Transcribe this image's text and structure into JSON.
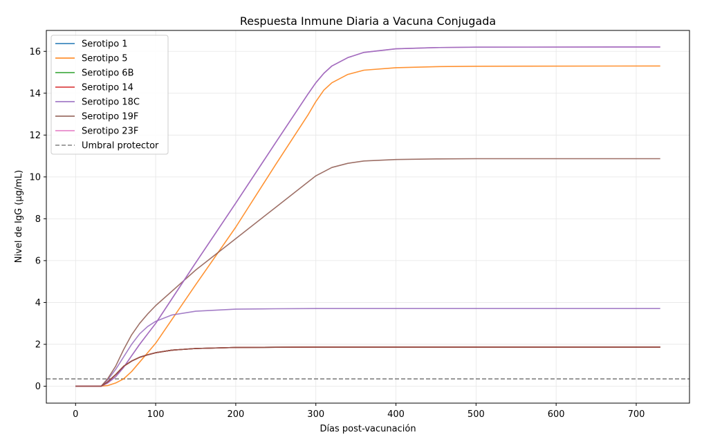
{
  "chart_data": {
    "type": "line",
    "title": "Respuesta Inmune Diaria a Vacuna Conjugada",
    "xlabel": "Días post-vacunación",
    "ylabel": "Nivel de IgG (μg/mL)",
    "xlim": [
      -36.5,
      766.5
    ],
    "ylim": [
      -0.81,
      17.0
    ],
    "xticks": [
      0,
      100,
      200,
      300,
      400,
      500,
      600,
      700
    ],
    "yticks": [
      0,
      2,
      4,
      6,
      8,
      10,
      12,
      14,
      16
    ],
    "grid": true,
    "legend_position": "top-left",
    "series": [
      {
        "name": "Serotipo 1",
        "color": "#1f77b4",
        "style": "solid",
        "points": [
          [
            0,
            0
          ],
          [
            32,
            0
          ],
          [
            40,
            0.2
          ],
          [
            50,
            0.55
          ],
          [
            60,
            0.95
          ],
          [
            70,
            1.2
          ],
          [
            80,
            1.38
          ],
          [
            90,
            1.5
          ],
          [
            100,
            1.6
          ],
          [
            120,
            1.72
          ],
          [
            150,
            1.8
          ],
          [
            200,
            1.85
          ],
          [
            250,
            1.86
          ],
          [
            300,
            1.87
          ],
          [
            400,
            1.87
          ],
          [
            730,
            1.87
          ]
        ]
      },
      {
        "name": "Serotipo 5",
        "color": "#ff7f0e",
        "style": "solid",
        "points": [
          [
            0,
            0
          ],
          [
            32,
            0
          ],
          [
            40,
            0.03
          ],
          [
            50,
            0.15
          ],
          [
            60,
            0.35
          ],
          [
            70,
            0.7
          ],
          [
            80,
            1.15
          ],
          [
            90,
            1.6
          ],
          [
            100,
            2.05
          ],
          [
            150,
            4.85
          ],
          [
            200,
            7.6
          ],
          [
            250,
            10.6
          ],
          [
            290,
            12.95
          ],
          [
            300,
            13.6
          ],
          [
            310,
            14.15
          ],
          [
            320,
            14.5
          ],
          [
            340,
            14.9
          ],
          [
            360,
            15.1
          ],
          [
            400,
            15.22
          ],
          [
            450,
            15.27
          ],
          [
            500,
            15.29
          ],
          [
            730,
            15.3
          ]
        ]
      },
      {
        "name": "Serotipo 6B",
        "color": "#2ca02c",
        "style": "solid",
        "points": [
          [
            0,
            0
          ],
          [
            32,
            0
          ],
          [
            40,
            0.2
          ],
          [
            50,
            0.55
          ],
          [
            60,
            0.95
          ],
          [
            70,
            1.2
          ],
          [
            80,
            1.38
          ],
          [
            90,
            1.5
          ],
          [
            100,
            1.6
          ],
          [
            120,
            1.72
          ],
          [
            150,
            1.8
          ],
          [
            200,
            1.85
          ],
          [
            250,
            1.86
          ],
          [
            300,
            1.87
          ],
          [
            400,
            1.87
          ],
          [
            730,
            1.87
          ]
        ]
      },
      {
        "name": "Serotipo 14",
        "color": "#d62728",
        "style": "solid",
        "points": [
          [
            0,
            0
          ],
          [
            32,
            0
          ],
          [
            40,
            0.2
          ],
          [
            50,
            0.55
          ],
          [
            60,
            0.95
          ],
          [
            70,
            1.2
          ],
          [
            80,
            1.38
          ],
          [
            90,
            1.5
          ],
          [
            100,
            1.6
          ],
          [
            120,
            1.72
          ],
          [
            150,
            1.8
          ],
          [
            200,
            1.85
          ],
          [
            250,
            1.86
          ],
          [
            300,
            1.87
          ],
          [
            400,
            1.87
          ],
          [
            730,
            1.87
          ]
        ]
      },
      {
        "name": "Serotipo 18C",
        "color": "#9467bd",
        "style": "solid",
        "points": [
          [
            0,
            0
          ],
          [
            32,
            0
          ],
          [
            40,
            0.3
          ],
          [
            50,
            0.8
          ],
          [
            60,
            1.4
          ],
          [
            70,
            2.0
          ],
          [
            80,
            2.5
          ],
          [
            90,
            2.85
          ],
          [
            100,
            3.1
          ],
          [
            120,
            3.4
          ],
          [
            150,
            3.58
          ],
          [
            200,
            3.68
          ],
          [
            250,
            3.7
          ],
          [
            300,
            3.71
          ],
          [
            730,
            3.71
          ]
        ]
      },
      {
        "name": "Serotipo 19F",
        "color": "#8c564b",
        "style": "solid",
        "points": [
          [
            0,
            0
          ],
          [
            32,
            0
          ],
          [
            40,
            0.35
          ],
          [
            50,
            0.95
          ],
          [
            60,
            1.75
          ],
          [
            70,
            2.45
          ],
          [
            80,
            3.0
          ],
          [
            90,
            3.45
          ],
          [
            100,
            3.85
          ],
          [
            150,
            5.55
          ],
          [
            200,
            7.05
          ],
          [
            250,
            8.55
          ],
          [
            290,
            9.75
          ],
          [
            300,
            10.05
          ],
          [
            320,
            10.45
          ],
          [
            340,
            10.65
          ],
          [
            360,
            10.76
          ],
          [
            400,
            10.83
          ],
          [
            450,
            10.86
          ],
          [
            500,
            10.87
          ],
          [
            730,
            10.87
          ]
        ]
      },
      {
        "name": "Serotipo 23F",
        "color": "#e377c2",
        "style": "solid",
        "points": [
          [
            0,
            0
          ],
          [
            32,
            0
          ],
          [
            40,
            0.15
          ],
          [
            50,
            0.45
          ],
          [
            60,
            0.9
          ],
          [
            70,
            1.45
          ],
          [
            80,
            2.0
          ],
          [
            90,
            2.5
          ],
          [
            100,
            3.0
          ],
          [
            150,
            5.9
          ],
          [
            200,
            8.75
          ],
          [
            250,
            11.65
          ],
          [
            290,
            13.95
          ],
          [
            300,
            14.5
          ],
          [
            310,
            14.95
          ],
          [
            320,
            15.3
          ],
          [
            340,
            15.7
          ],
          [
            360,
            15.95
          ],
          [
            400,
            16.12
          ],
          [
            450,
            16.18
          ],
          [
            500,
            16.2
          ],
          [
            730,
            16.21
          ]
        ]
      },
      {
        "name": "Serotipo 18C",
        "color": "#9467bd",
        "style": "solid",
        "legend": false,
        "points": [
          [
            0,
            0
          ],
          [
            32,
            0
          ],
          [
            40,
            0.15
          ],
          [
            50,
            0.45
          ],
          [
            60,
            0.9
          ],
          [
            70,
            1.45
          ],
          [
            80,
            2.0
          ],
          [
            90,
            2.5
          ],
          [
            100,
            3.0
          ],
          [
            150,
            5.9
          ],
          [
            200,
            8.75
          ],
          [
            250,
            11.65
          ],
          [
            290,
            13.95
          ],
          [
            300,
            14.5
          ],
          [
            310,
            14.95
          ],
          [
            320,
            15.3
          ],
          [
            340,
            15.7
          ],
          [
            360,
            15.95
          ],
          [
            400,
            16.12
          ],
          [
            450,
            16.18
          ],
          [
            500,
            16.2
          ],
          [
            730,
            16.21
          ]
        ]
      },
      {
        "name": "Serotipo 14",
        "color": "#d62728",
        "style": "solid",
        "legend": false,
        "points": [
          [
            0,
            0
          ],
          [
            32,
            0
          ],
          [
            40,
            0.2
          ],
          [
            50,
            0.55
          ],
          [
            60,
            0.95
          ],
          [
            70,
            1.2
          ],
          [
            80,
            1.38
          ],
          [
            90,
            1.5
          ],
          [
            100,
            1.6
          ],
          [
            120,
            1.72
          ],
          [
            150,
            1.8
          ],
          [
            200,
            1.85
          ],
          [
            250,
            1.86
          ],
          [
            300,
            1.87
          ],
          [
            400,
            1.87
          ],
          [
            730,
            1.87
          ]
        ]
      },
      {
        "name": "Serotipo 19F",
        "color": "#8c564b",
        "style": "solid",
        "legend": false,
        "points": [
          [
            0,
            0
          ],
          [
            32,
            0
          ],
          [
            40,
            0.2
          ],
          [
            50,
            0.55
          ],
          [
            60,
            0.95
          ],
          [
            70,
            1.2
          ],
          [
            80,
            1.38
          ],
          [
            90,
            1.5
          ],
          [
            100,
            1.6
          ],
          [
            120,
            1.72
          ],
          [
            150,
            1.8
          ],
          [
            200,
            1.85
          ],
          [
            250,
            1.86
          ],
          [
            300,
            1.87
          ],
          [
            400,
            1.87
          ],
          [
            730,
            1.87
          ]
        ]
      }
    ],
    "threshold": {
      "name": "Umbral protector",
      "value": 0.35,
      "color": "#808080",
      "style": "dashed"
    }
  }
}
